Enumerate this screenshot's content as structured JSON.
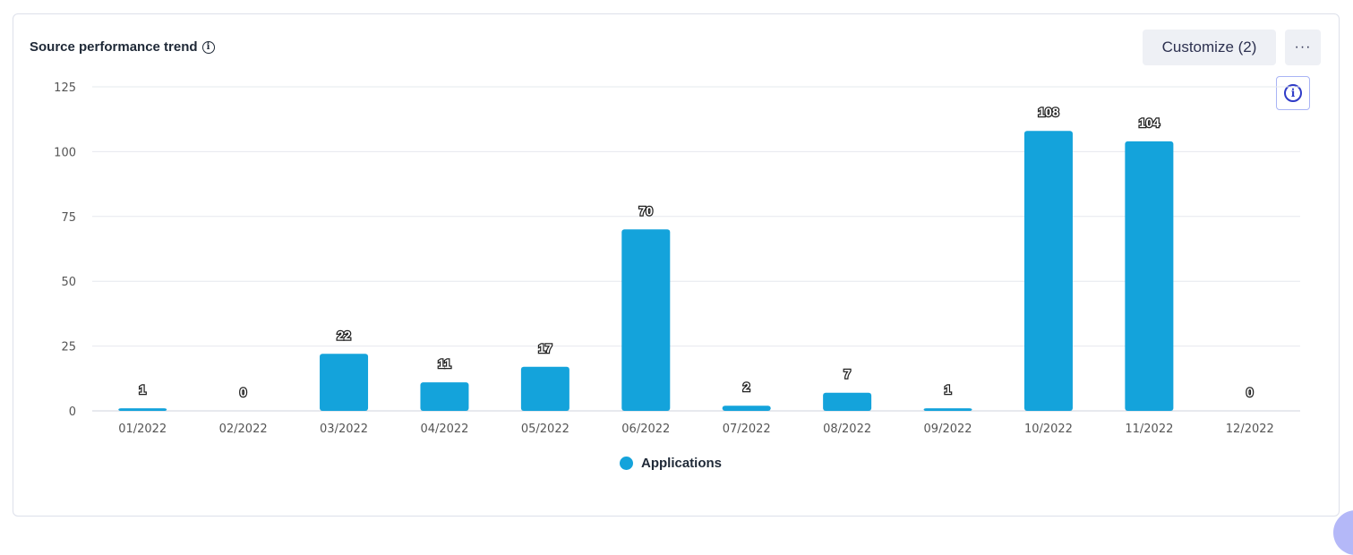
{
  "header": {
    "title": "Source performance trend",
    "customize_label": "Customize (2)",
    "more_label": "···",
    "info_icon": "info-icon"
  },
  "colors": {
    "bar": "#14a3db",
    "grid": "#e6e8ee"
  },
  "chart_data": {
    "type": "bar",
    "title": "Source performance trend",
    "categories": [
      "01/2022",
      "02/2022",
      "03/2022",
      "04/2022",
      "05/2022",
      "06/2022",
      "07/2022",
      "08/2022",
      "09/2022",
      "10/2022",
      "11/2022",
      "12/2022"
    ],
    "series": [
      {
        "name": "Applications",
        "values": [
          1,
          0,
          22,
          11,
          17,
          70,
          2,
          7,
          1,
          108,
          104,
          0
        ]
      }
    ],
    "ylim": [
      0,
      125
    ],
    "yticks": [
      0,
      25,
      50,
      75,
      100,
      125
    ],
    "grid": true,
    "legend": "bottom"
  }
}
